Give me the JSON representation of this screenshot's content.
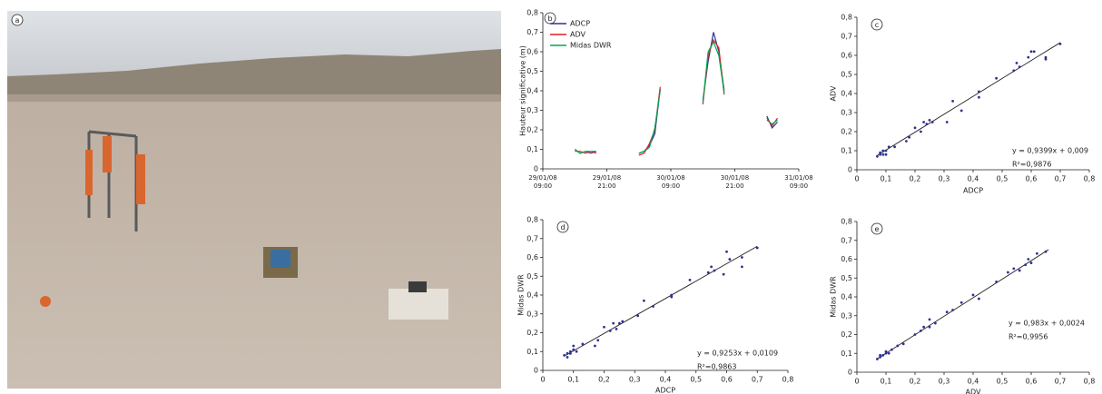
{
  "photo_label": "a",
  "chart_data": [
    {
      "type": "line",
      "panel_label": "b",
      "y_label": "Hauteur significative (m)",
      "x": [
        "29/01/08 15:00",
        "29/01/08 16:00",
        "29/01/08 17:00",
        "29/01/08 18:00",
        "29/01/08 19:00",
        "29/01/08 23:00",
        "30/01/08 03:00",
        "30/01/08 04:00",
        "30/01/08 05:00",
        "30/01/08 06:00",
        "30/01/08 07:00",
        "30/01/08 11:00",
        "30/01/08 15:00",
        "30/01/08 16:00",
        "30/01/08 17:00",
        "30/01/08 18:00",
        "30/01/08 19:00",
        "30/01/08 23:00",
        "31/01/08 03:00",
        "31/01/08 04:00",
        "31/01/08 05:00"
      ],
      "series": [
        {
          "name": "ADCP",
          "color": "#2e3192",
          "values": [
            0.1,
            0.08,
            0.09,
            0.08,
            0.09,
            null,
            0.08,
            0.09,
            0.12,
            0.18,
            0.41,
            null,
            0.35,
            0.55,
            0.7,
            0.6,
            0.4,
            null,
            0.27,
            0.21,
            0.24
          ]
        },
        {
          "name": "ADV",
          "color": "#e31e24",
          "values": [
            0.09,
            0.09,
            0.08,
            0.09,
            0.08,
            null,
            0.07,
            0.08,
            0.13,
            0.2,
            0.42,
            null,
            0.33,
            0.58,
            0.66,
            0.62,
            0.38,
            null,
            0.26,
            0.22,
            0.26
          ]
        },
        {
          "name": "Midas DWR",
          "color": "#00a651",
          "values": [
            0.1,
            0.08,
            0.09,
            0.09,
            0.09,
            null,
            0.08,
            0.09,
            0.11,
            0.21,
            0.4,
            null,
            0.34,
            0.6,
            0.65,
            0.58,
            0.39,
            null,
            0.25,
            0.23,
            0.25
          ]
        }
      ],
      "xlim": [
        "29/01/08 09:00",
        "31/01/08 09:00"
      ],
      "xticks": [
        "29/01/08 09:00",
        "29/01/08 21:00",
        "30/01/08 09:00",
        "30/01/08 21:00",
        "31/01/08 09:00"
      ],
      "ylim": [
        0,
        0.8
      ],
      "yticks": [
        0,
        {
          "value": 0.1,
          "label": "0,1"
        },
        {
          "value": 0.2,
          "label": "0,2"
        },
        {
          "value": 0.3,
          "label": "0,3"
        },
        {
          "value": 0.4,
          "label": "0,4"
        },
        {
          "value": 0.5,
          "label": "0,5"
        },
        {
          "value": 0.6,
          "label": "0,6"
        },
        {
          "value": 0.7,
          "label": "0,7"
        },
        {
          "value": 0.8,
          "label": "0,8"
        }
      ],
      "legend": "top-left"
    },
    {
      "type": "scatter",
      "panel_label": "c",
      "x_label": "ADCP",
      "y_label": "ADV",
      "color": "#2e3192",
      "x": [
        0.07,
        0.08,
        0.08,
        0.09,
        0.09,
        0.1,
        0.1,
        0.11,
        0.13,
        0.17,
        0.18,
        0.2,
        0.22,
        0.23,
        0.24,
        0.25,
        0.26,
        0.31,
        0.33,
        0.36,
        0.42,
        0.42,
        0.48,
        0.54,
        0.55,
        0.56,
        0.59,
        0.6,
        0.61,
        0.65,
        0.65,
        0.7
      ],
      "values": [
        0.07,
        0.08,
        0.09,
        0.08,
        0.1,
        0.1,
        0.08,
        0.12,
        0.12,
        0.15,
        0.17,
        0.22,
        0.2,
        0.25,
        0.24,
        0.26,
        0.25,
        0.25,
        0.36,
        0.31,
        0.38,
        0.41,
        0.48,
        0.52,
        0.56,
        0.54,
        0.59,
        0.62,
        0.62,
        0.58,
        0.59,
        0.66
      ],
      "trendline": {
        "x": [
          0.07,
          0.7
        ],
        "y": [
          0.075,
          0.667
        ]
      },
      "equation": "y = 0,9399x + 0,009",
      "r2": "R²=0,9876",
      "xlim": [
        0,
        0.8
      ],
      "ylim": [
        0,
        0.8
      ],
      "xticks": [
        0,
        {
          "value": 0.1,
          "label": "0,1"
        },
        {
          "value": 0.2,
          "label": "0,2"
        },
        {
          "value": 0.3,
          "label": "0,3"
        },
        {
          "value": 0.4,
          "label": "0,4"
        },
        {
          "value": 0.5,
          "label": "0,5"
        },
        {
          "value": 0.6,
          "label": "0,6"
        },
        {
          "value": 0.7,
          "label": "0,7"
        },
        {
          "value": 0.8,
          "label": "0,8"
        }
      ],
      "yticks": [
        0,
        {
          "value": 0.1,
          "label": "0,1"
        },
        {
          "value": 0.2,
          "label": "0,2"
        },
        {
          "value": 0.3,
          "label": "0,3"
        },
        {
          "value": 0.4,
          "label": "0,4"
        },
        {
          "value": 0.5,
          "label": "0,5"
        },
        {
          "value": 0.6,
          "label": "0,6"
        },
        {
          "value": 0.7,
          "label": "0,7"
        },
        {
          "value": 0.8,
          "label": "0,8"
        }
      ]
    },
    {
      "type": "scatter",
      "panel_label": "d",
      "x_label": "ADCP",
      "y_label": "Midas DWR",
      "color": "#2e3192",
      "x": [
        0.07,
        0.08,
        0.08,
        0.09,
        0.09,
        0.1,
        0.1,
        0.11,
        0.13,
        0.17,
        0.18,
        0.2,
        0.22,
        0.23,
        0.24,
        0.25,
        0.26,
        0.31,
        0.33,
        0.36,
        0.42,
        0.42,
        0.48,
        0.54,
        0.55,
        0.56,
        0.59,
        0.6,
        0.61,
        0.65,
        0.65,
        0.7
      ],
      "values": [
        0.08,
        0.09,
        0.07,
        0.1,
        0.09,
        0.11,
        0.13,
        0.1,
        0.14,
        0.13,
        0.16,
        0.23,
        0.21,
        0.25,
        0.22,
        0.25,
        0.26,
        0.29,
        0.37,
        0.34,
        0.4,
        0.39,
        0.48,
        0.52,
        0.55,
        0.53,
        0.51,
        0.63,
        0.59,
        0.55,
        0.6,
        0.65
      ],
      "trendline": {
        "x": [
          0.07,
          0.7
        ],
        "y": [
          0.076,
          0.659
        ]
      },
      "equation": "y = 0,9253x + 0,0109",
      "r2": "R²=0,9863",
      "xlim": [
        0,
        0.8
      ],
      "ylim": [
        0,
        0.8
      ],
      "xticks": [
        0,
        {
          "value": 0.1,
          "label": "0,1"
        },
        {
          "value": 0.2,
          "label": "0,2"
        },
        {
          "value": 0.3,
          "label": "0,3"
        },
        {
          "value": 0.4,
          "label": "0,4"
        },
        {
          "value": 0.5,
          "label": "0,5"
        },
        {
          "value": 0.6,
          "label": "0,6"
        },
        {
          "value": 0.7,
          "label": "0,7"
        },
        {
          "value": 0.8,
          "label": "0,8"
        }
      ],
      "yticks": [
        0,
        {
          "value": 0.1,
          "label": "0,1"
        },
        {
          "value": 0.2,
          "label": "0,2"
        },
        {
          "value": 0.3,
          "label": "0,3"
        },
        {
          "value": 0.4,
          "label": "0,4"
        },
        {
          "value": 0.5,
          "label": "0,5"
        },
        {
          "value": 0.6,
          "label": "0,6"
        },
        {
          "value": 0.7,
          "label": "0,7"
        },
        {
          "value": 0.8,
          "label": "0,8"
        }
      ]
    },
    {
      "type": "scatter",
      "panel_label": "e",
      "x_label": "ADV",
      "y_label": "Midas DWR",
      "color": "#2e3192",
      "x": [
        0.07,
        0.08,
        0.08,
        0.09,
        0.1,
        0.1,
        0.11,
        0.12,
        0.14,
        0.16,
        0.2,
        0.22,
        0.23,
        0.25,
        0.25,
        0.27,
        0.31,
        0.33,
        0.36,
        0.4,
        0.42,
        0.48,
        0.52,
        0.54,
        0.56,
        0.58,
        0.59,
        0.6,
        0.62,
        0.65
      ],
      "values": [
        0.07,
        0.08,
        0.09,
        0.09,
        0.1,
        0.11,
        0.1,
        0.12,
        0.14,
        0.15,
        0.2,
        0.22,
        0.24,
        0.28,
        0.24,
        0.26,
        0.32,
        0.33,
        0.37,
        0.41,
        0.39,
        0.48,
        0.53,
        0.55,
        0.54,
        0.57,
        0.6,
        0.58,
        0.63,
        0.64
      ],
      "trendline": {
        "x": [
          0.07,
          0.66
        ],
        "y": [
          0.071,
          0.651
        ]
      },
      "equation": "y = 0,983x + 0,0024",
      "r2": "R²=0,9956",
      "xlim": [
        0,
        0.8
      ],
      "ylim": [
        0,
        0.8
      ],
      "xticks": [
        0,
        {
          "value": 0.1,
          "label": "0,1"
        },
        {
          "value": 0.2,
          "label": "0,2"
        },
        {
          "value": 0.3,
          "label": "0,3"
        },
        {
          "value": 0.4,
          "label": "0,4"
        },
        {
          "value": 0.5,
          "label": "0,5"
        },
        {
          "value": 0.6,
          "label": "0,6"
        },
        {
          "value": 0.7,
          "label": "0,7"
        },
        {
          "value": 0.8,
          "label": "0,8"
        }
      ],
      "yticks": [
        0,
        {
          "value": 0.1,
          "label": "0,1"
        },
        {
          "value": 0.2,
          "label": "0,2"
        },
        {
          "value": 0.3,
          "label": "0,3"
        },
        {
          "value": 0.4,
          "label": "0,4"
        },
        {
          "value": 0.5,
          "label": "0,5"
        },
        {
          "value": 0.6,
          "label": "0,6"
        },
        {
          "value": 0.7,
          "label": "0,7"
        },
        {
          "value": 0.8,
          "label": "0,8"
        }
      ]
    }
  ]
}
